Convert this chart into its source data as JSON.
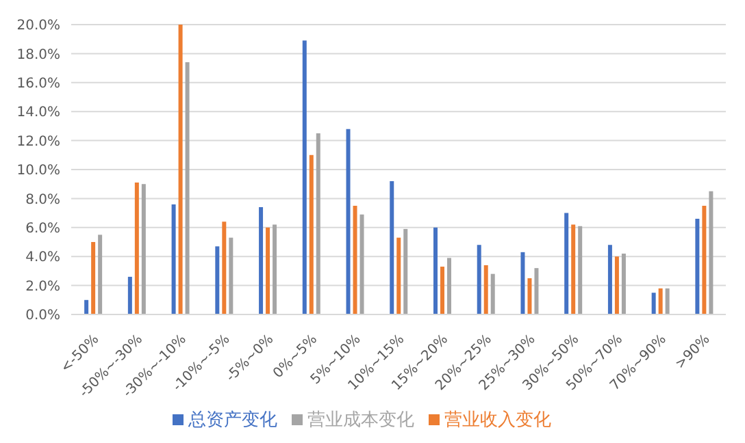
{
  "chart_data": {
    "type": "bar",
    "categories": [
      "<-50%",
      "-50%~-30%",
      "-30%~-10%",
      "-10%~-5%",
      "-5%~0%",
      "0%~5%",
      "5%~10%",
      "10%~15%",
      "15%~20%",
      "20%~25%",
      "25%~30%",
      "30%~50%",
      "50%~70%",
      "70%~90%",
      ">90%"
    ],
    "series": [
      {
        "name": "总资产变化",
        "color": "#4472c4",
        "values": [
          1.0,
          2.6,
          7.6,
          4.7,
          7.4,
          18.9,
          12.8,
          9.2,
          6.0,
          4.8,
          4.3,
          7.0,
          4.8,
          1.5,
          6.6
        ]
      },
      {
        "name": "营业收入变化",
        "color": "#ed7d31",
        "values": [
          5.0,
          9.1,
          20.0,
          6.4,
          6.0,
          11.0,
          7.5,
          5.3,
          3.3,
          3.4,
          2.5,
          6.2,
          4.0,
          1.8,
          7.5
        ]
      },
      {
        "name": "营业成本变化",
        "color": "#a5a5a5",
        "values": [
          5.5,
          9.0,
          17.4,
          5.3,
          6.2,
          12.5,
          6.9,
          5.9,
          3.9,
          2.8,
          3.2,
          6.1,
          4.2,
          1.8,
          8.5
        ]
      }
    ],
    "ylim": [
      0,
      20
    ],
    "yticks": [
      {
        "value": 0,
        "label": "0.0%"
      },
      {
        "value": 2,
        "label": "2.0%"
      },
      {
        "value": 4,
        "label": "4.0%"
      },
      {
        "value": 6,
        "label": "6.0%"
      },
      {
        "value": 8,
        "label": "8.0%"
      },
      {
        "value": 10,
        "label": "10.0%"
      },
      {
        "value": 12,
        "label": "12.0%"
      },
      {
        "value": 14,
        "label": "14.0%"
      },
      {
        "value": 16,
        "label": "16.0%"
      },
      {
        "value": 18,
        "label": "18.0%"
      },
      {
        "value": 20,
        "label": "20.0%"
      }
    ],
    "grid": "y",
    "legend": "bottom"
  }
}
